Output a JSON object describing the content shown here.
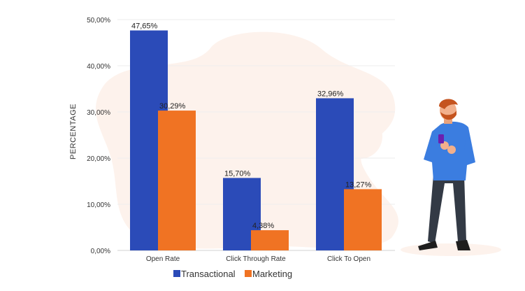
{
  "chart_data": {
    "type": "bar",
    "ylabel": "PERCENTAGE",
    "xlabel": "",
    "title": "",
    "ylim": [
      0,
      50
    ],
    "yticks": [
      "0,00%",
      "10,00%",
      "20,00%",
      "30,00%",
      "40,00%",
      "50,00%"
    ],
    "categories": [
      "Open Rate",
      "Click Through Rate",
      "Click To Open"
    ],
    "series": [
      {
        "name": "Transactional",
        "values": [
          47.65,
          15.7,
          32.96
        ],
        "labels": [
          "47,65%",
          "15,70%",
          "32,96%"
        ],
        "color": "#2b4bb8"
      },
      {
        "name": "Marketing",
        "values": [
          30.29,
          4.38,
          13.27
        ],
        "labels": [
          "30,29%",
          "4,38%",
          "13,27%"
        ],
        "color": "#f07323"
      }
    ],
    "legend_position": "bottom",
    "grid": true
  },
  "illustration": {
    "icon": "person-with-phone-icon"
  },
  "colors": {
    "background_blob": "#fdf2ec",
    "grid": "#eeeeee",
    "axis": "#d0d0d0"
  }
}
